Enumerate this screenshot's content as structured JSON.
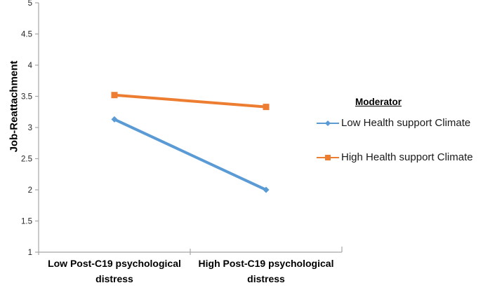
{
  "chart_data": {
    "type": "line",
    "title": "",
    "xlabel": "",
    "ylabel": "Job-Reattachment",
    "categories": [
      "Low Post-C19 psychological distress",
      "High Post-C19 psychological distress"
    ],
    "series": [
      {
        "name": "Low Health support Climate",
        "color": "#5B9BD5",
        "marker": "diamond",
        "values": [
          3.13,
          2.0
        ]
      },
      {
        "name": "High Health support Climate",
        "color": "#ED7D31",
        "marker": "square",
        "values": [
          3.52,
          3.33
        ]
      }
    ],
    "ylim": [
      1,
      5
    ],
    "yticks": [
      1,
      1.5,
      2,
      2.5,
      3,
      3.5,
      4,
      4.5,
      5
    ],
    "grid": false,
    "legend_title": "Moderator",
    "legend_position": "right",
    "axis_color": "#A6A6A6",
    "tick_label_color": "#262626"
  }
}
